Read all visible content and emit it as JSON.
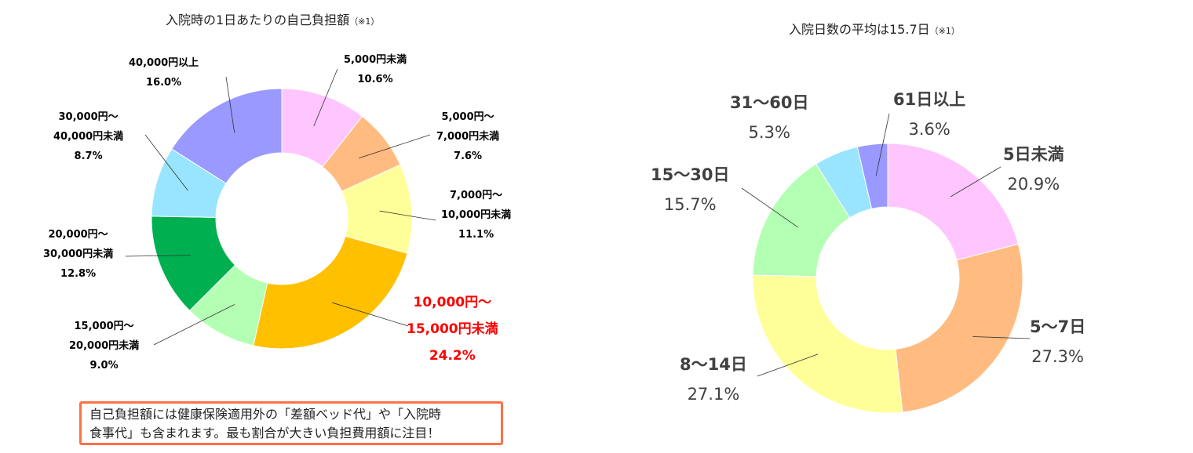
{
  "chart_data": [
    {
      "type": "pie",
      "donut": true,
      "title": "入院時の1日あたりの自己負担額",
      "title_note": "（※1）",
      "categories": [
        "5,000円未満",
        "5,000円～7,000円未満",
        "7,000円～10,000円未満",
        "10,000円～15,000円未満",
        "15,000円～20,000円未満",
        "20,000円～30,000円未満",
        "30,000円～40,000円未満",
        "40,000円以上"
      ],
      "label_lines": [
        [
          "5,000円未満"
        ],
        [
          "5,000円～",
          "7,000円未満"
        ],
        [
          "7,000円～",
          "10,000円未満"
        ],
        [
          "10,000円～",
          "15,000円未満"
        ],
        [
          "15,000円～",
          "20,000円未満"
        ],
        [
          "20,000円～",
          "30,000円未満"
        ],
        [
          "30,000円～",
          "40,000円未満"
        ],
        [
          "40,000円以上"
        ]
      ],
      "values": [
        10.6,
        7.6,
        11.1,
        24.2,
        9.0,
        12.8,
        8.7,
        16.0
      ],
      "value_labels": [
        "10.6%",
        "7.6%",
        "11.1%",
        "24.2%",
        "9.0%",
        "12.8%",
        "8.7%",
        "16.0%"
      ],
      "colors": [
        "#FFC5FF",
        "#FFBB80",
        "#FFFF99",
        "#FFC000",
        "#B3FFB3",
        "#00B050",
        "#99E5FF",
        "#9999FF"
      ],
      "highlight_color": "#FF0000",
      "highlight_index": 3
    },
    {
      "type": "pie",
      "donut": true,
      "title": "入院日数の平均は15.7日",
      "title_note": "（※1）",
      "categories": [
        "5日未満",
        "5～7日",
        "8～14日",
        "15～30日",
        "31～60日",
        "61日以上"
      ],
      "values": [
        20.9,
        27.3,
        27.1,
        15.7,
        5.3,
        3.6
      ],
      "value_labels": [
        "20.9%",
        "27.3%",
        "27.1%",
        "15.7%",
        "5.3%",
        "3.6%"
      ],
      "colors": [
        "#FFC5FF",
        "#FFBB80",
        "#FFFF99",
        "#B3FFB3",
        "#99E5FF",
        "#9999FF"
      ]
    }
  ],
  "note": {
    "line1": "自己負担額には健康保険適用外の「差額ベッド代」や「入院時",
    "line2": "食事代」も含まれます。最も割合が大きい負担費用額に注目！",
    "border_color": "#FF7043"
  }
}
